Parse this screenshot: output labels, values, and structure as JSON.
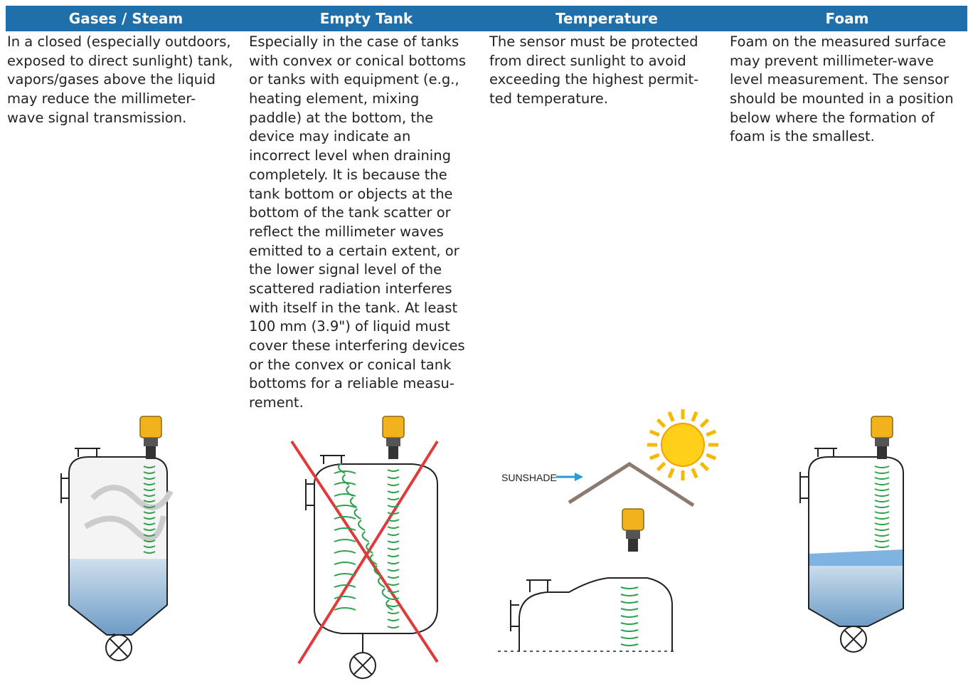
{
  "columns": [
    {
      "heading": "Gases / Steam",
      "lines": [
        "In a closed (especially outdoors,",
        "exposed to direct sunlight) tank,",
        "vapors/gases above the liquid",
        "may reduce the millimeter-",
        "wave signal transmission."
      ]
    },
    {
      "heading": "Empty Tank",
      "lines": [
        "Especially in the case of tanks",
        "with convex or conical bottoms",
        "or tanks with equipment (e.g.,",
        "heating element, mixing",
        "paddle) at the bottom, the",
        "device may indicate an",
        "incorrect level when draining",
        "completely. It is because the",
        "tank bottom or objects at the",
        "bottom of the tank scatter or",
        "reflect the millimeter waves",
        "emitted to a certain extent, or",
        "the lower signal level of the",
        "scattered radiation interferes",
        "with itself in the tank. At least",
        "100 mm (3.9\") of liquid must",
        "cover these interfering devices",
        "or the convex or conical tank",
        "bottoms for a reliable measu-",
        "rement."
      ]
    },
    {
      "heading": "Temperature",
      "lines": [
        "The sensor must be protected",
        "from direct sunlight to avoid",
        "exceeding the highest permit-",
        "ted temperature."
      ],
      "illustration_label": "SUNSHADE"
    },
    {
      "heading": "Foam",
      "lines": [
        "Foam on the measured surface",
        "may prevent millimeter-wave",
        "level measurement. The sensor",
        "should be mounted in a position",
        "below where the formation of",
        "foam is the smallest."
      ]
    }
  ]
}
